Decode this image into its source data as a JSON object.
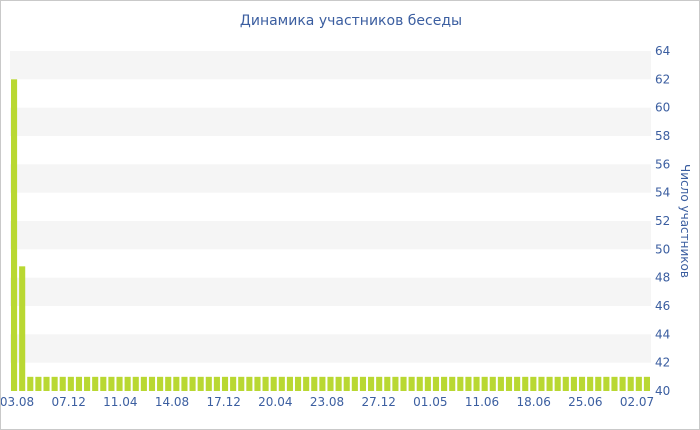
{
  "chart_data": {
    "type": "bar",
    "title": "Динамика участников беседы",
    "ylabel": "Число участников",
    "xlabel": "",
    "ylim": [
      40,
      64
    ],
    "yticks": [
      40,
      42,
      44,
      46,
      48,
      50,
      52,
      54,
      56,
      58,
      60,
      62,
      64
    ],
    "x_tick_labels": [
      "03.08",
      "07.12",
      "11.04",
      "14.08",
      "17.12",
      "20.04",
      "23.08",
      "27.12",
      "01.05",
      "11.06",
      "18.06",
      "25.06",
      "02.07"
    ],
    "y_axis_side": "right",
    "bar_color": "#b9d832",
    "band_color": "#f5f5f5",
    "series": [
      {
        "values": [
          62,
          48.8,
          41,
          41,
          41,
          41,
          41,
          41,
          41,
          41,
          41,
          41,
          41,
          41,
          41,
          41,
          41,
          41,
          41,
          41,
          41,
          41,
          41,
          41,
          41,
          41,
          41,
          41,
          41,
          41,
          41,
          41,
          41,
          41,
          41,
          41,
          41,
          41,
          41,
          41,
          41,
          41,
          41,
          41,
          41,
          41,
          41,
          41,
          41,
          41,
          41,
          41,
          41,
          41,
          41,
          41,
          41,
          41,
          41,
          41,
          41,
          41,
          41,
          41,
          41,
          41,
          41,
          41,
          41,
          41,
          41,
          41,
          41,
          41,
          41,
          41,
          41,
          41,
          41
        ]
      }
    ]
  }
}
